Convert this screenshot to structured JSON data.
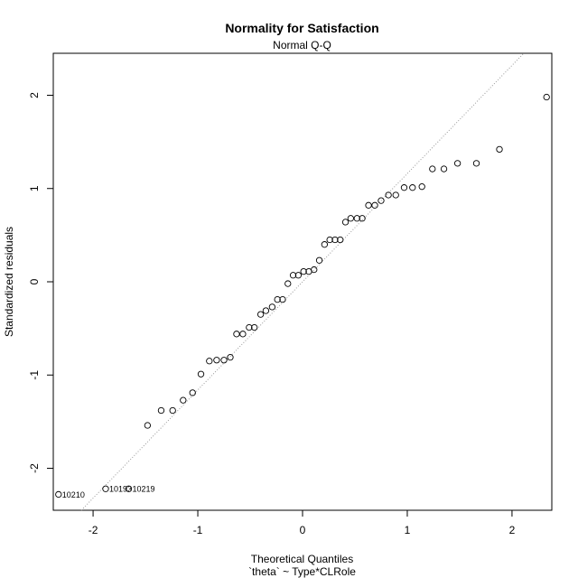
{
  "chart_data": {
    "type": "scatter",
    "title": "Normality for Satisfaction",
    "subtitle": "Normal Q-Q",
    "xlabel": "Theoretical Quantiles",
    "xlabel_line2": "`theta` ~ Type*CLRole",
    "ylabel": "Standardized residuals",
    "xlim": [
      -2.38,
      2.38
    ],
    "ylim": [
      -2.45,
      2.45
    ],
    "xticks": [
      -2,
      -1,
      0,
      1,
      2
    ],
    "yticks": [
      -2,
      -1,
      0,
      1,
      2
    ],
    "grid": false,
    "reference_line": {
      "intercept": 0,
      "slope": 1.16,
      "style": "dotted"
    },
    "points": [
      {
        "x": -2.33,
        "y": -2.28,
        "label": "10210"
      },
      {
        "x": -1.88,
        "y": -2.22,
        "label": "10193"
      },
      {
        "x": -1.66,
        "y": -2.22,
        "label": "10219"
      },
      {
        "x": -1.48,
        "y": -1.54
      },
      {
        "x": -1.35,
        "y": -1.38
      },
      {
        "x": -1.24,
        "y": -1.38
      },
      {
        "x": -1.14,
        "y": -1.27
      },
      {
        "x": -1.05,
        "y": -1.19
      },
      {
        "x": -0.97,
        "y": -0.99
      },
      {
        "x": -0.89,
        "y": -0.85
      },
      {
        "x": -0.82,
        "y": -0.84
      },
      {
        "x": -0.75,
        "y": -0.84
      },
      {
        "x": -0.69,
        "y": -0.81
      },
      {
        "x": -0.63,
        "y": -0.56
      },
      {
        "x": -0.57,
        "y": -0.56
      },
      {
        "x": -0.51,
        "y": -0.49
      },
      {
        "x": -0.46,
        "y": -0.49
      },
      {
        "x": -0.4,
        "y": -0.35
      },
      {
        "x": -0.35,
        "y": -0.31
      },
      {
        "x": -0.29,
        "y": -0.27
      },
      {
        "x": -0.24,
        "y": -0.19
      },
      {
        "x": -0.19,
        "y": -0.19
      },
      {
        "x": -0.14,
        "y": -0.02
      },
      {
        "x": -0.09,
        "y": 0.07
      },
      {
        "x": -0.04,
        "y": 0.07
      },
      {
        "x": 0.01,
        "y": 0.11
      },
      {
        "x": 0.06,
        "y": 0.11
      },
      {
        "x": 0.11,
        "y": 0.13
      },
      {
        "x": 0.16,
        "y": 0.23
      },
      {
        "x": 0.21,
        "y": 0.4
      },
      {
        "x": 0.26,
        "y": 0.45
      },
      {
        "x": 0.31,
        "y": 0.45
      },
      {
        "x": 0.36,
        "y": 0.45
      },
      {
        "x": 0.41,
        "y": 0.64
      },
      {
        "x": 0.46,
        "y": 0.68
      },
      {
        "x": 0.52,
        "y": 0.68
      },
      {
        "x": 0.57,
        "y": 0.68
      },
      {
        "x": 0.63,
        "y": 0.82
      },
      {
        "x": 0.69,
        "y": 0.82
      },
      {
        "x": 0.75,
        "y": 0.87
      },
      {
        "x": 0.82,
        "y": 0.93
      },
      {
        "x": 0.89,
        "y": 0.93
      },
      {
        "x": 0.97,
        "y": 1.01
      },
      {
        "x": 1.05,
        "y": 1.01
      },
      {
        "x": 1.14,
        "y": 1.02
      },
      {
        "x": 1.24,
        "y": 1.21
      },
      {
        "x": 1.35,
        "y": 1.21
      },
      {
        "x": 1.48,
        "y": 1.27
      },
      {
        "x": 1.66,
        "y": 1.27
      },
      {
        "x": 1.88,
        "y": 1.42
      },
      {
        "x": 2.33,
        "y": 1.98
      }
    ]
  }
}
